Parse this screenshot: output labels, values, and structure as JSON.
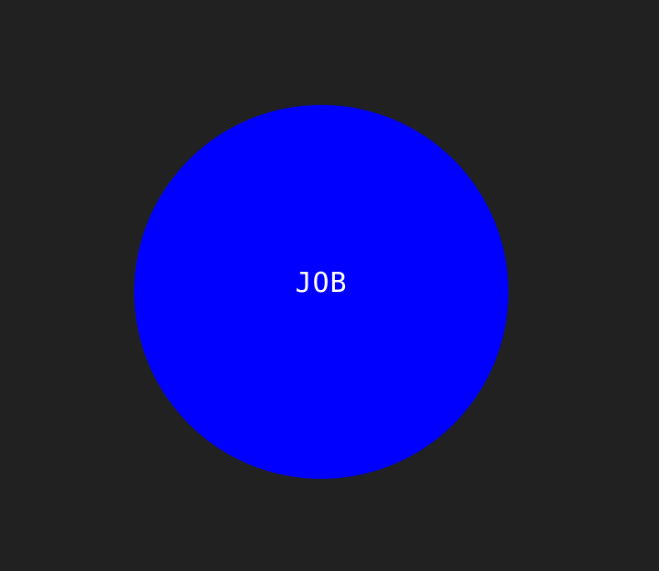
{
  "colors": {
    "background": "#212121",
    "circle_fill": "#0000ff",
    "label_text": "#ffffff"
  },
  "circle": {
    "label": "JOB"
  }
}
